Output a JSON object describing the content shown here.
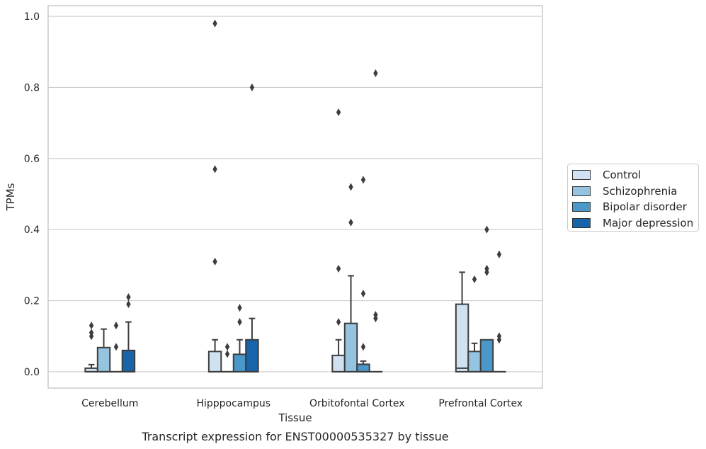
{
  "chart_data": {
    "type": "box",
    "title": "Transcript expression for ENST00000535327 by tissue",
    "xlabel": "Tissue",
    "ylabel": "TPMs",
    "ylim": [
      -0.046,
      1.03
    ],
    "yticks": [
      "0.0",
      "0.2",
      "0.4",
      "0.6",
      "0.8",
      "1.0"
    ],
    "grid": true,
    "legend_position": "right",
    "categories": [
      "Cerebellum",
      "Hipppocampus",
      "Orbitofontal Cortex",
      "Prefrontal Cortex"
    ],
    "series": [
      {
        "name": "Control",
        "color": "#d0e1f2",
        "boxes": [
          {
            "q1": 0,
            "median": 0,
            "q3": 0.01,
            "whisker_low": 0,
            "whisker_high": 0.02,
            "outliers": [
              0.1,
              0.11,
              0.13
            ]
          },
          {
            "q1": 0,
            "median": 0,
            "q3": 0.057,
            "whisker_low": 0,
            "whisker_high": 0.09,
            "outliers": [
              0.31,
              0.57,
              0.98
            ]
          },
          {
            "q1": 0,
            "median": 0,
            "q3": 0.046,
            "whisker_low": 0,
            "whisker_high": 0.09,
            "outliers": [
              0.14,
              0.29,
              0.73
            ]
          },
          {
            "q1": 0,
            "median": 0.01,
            "q3": 0.19,
            "whisker_low": 0,
            "whisker_high": 0.28,
            "outliers": []
          }
        ]
      },
      {
        "name": "Schizophrenia",
        "color": "#94c4df",
        "boxes": [
          {
            "q1": 0,
            "median": 0,
            "q3": 0.068,
            "whisker_low": 0,
            "whisker_high": 0.12,
            "outliers": []
          },
          {
            "q1": 0,
            "median": 0,
            "q3": 0,
            "whisker_low": 0,
            "whisker_high": 0,
            "outliers": [
              0.05,
              0.07
            ]
          },
          {
            "q1": 0,
            "median": 0,
            "q3": 0.136,
            "whisker_low": 0,
            "whisker_high": 0.27,
            "outliers": [
              0.42,
              0.52
            ]
          },
          {
            "q1": 0,
            "median": 0,
            "q3": 0.057,
            "whisker_low": 0,
            "whisker_high": 0.08,
            "outliers": [
              0.26
            ]
          }
        ]
      },
      {
        "name": "Bipolar disorder",
        "color": "#4a98c9",
        "boxes": [
          {
            "q1": 0,
            "median": 0,
            "q3": 0,
            "whisker_low": 0,
            "whisker_high": 0,
            "outliers": [
              0.07,
              0.13
            ]
          },
          {
            "q1": 0,
            "median": 0,
            "q3": 0.049,
            "whisker_low": 0,
            "whisker_high": 0.09,
            "outliers": [
              0.14,
              0.18
            ]
          },
          {
            "q1": 0,
            "median": 0,
            "q3": 0.021,
            "whisker_low": 0,
            "whisker_high": 0.03,
            "outliers": [
              0.07,
              0.22,
              0.54
            ]
          },
          {
            "q1": 0,
            "median": 0,
            "q3": 0.09,
            "whisker_low": 0,
            "whisker_high": 0.09,
            "outliers": [
              0.28,
              0.29,
              0.4
            ]
          }
        ]
      },
      {
        "name": "Major depression",
        "color": "#1764ab",
        "boxes": [
          {
            "q1": 0,
            "median": 0,
            "q3": 0.06,
            "whisker_low": 0,
            "whisker_high": 0.14,
            "outliers": [
              0.19,
              0.21
            ]
          },
          {
            "q1": 0,
            "median": 0,
            "q3": 0.09,
            "whisker_low": 0,
            "whisker_high": 0.15,
            "outliers": [
              0.8
            ]
          },
          {
            "q1": 0,
            "median": 0,
            "q3": 0,
            "whisker_low": 0,
            "whisker_high": 0,
            "outliers": [
              0.15,
              0.16,
              0.84
            ]
          },
          {
            "q1": 0,
            "median": 0,
            "q3": 0,
            "whisker_low": 0,
            "whisker_high": 0,
            "outliers": [
              0.09,
              0.1,
              0.33
            ]
          }
        ]
      }
    ]
  }
}
